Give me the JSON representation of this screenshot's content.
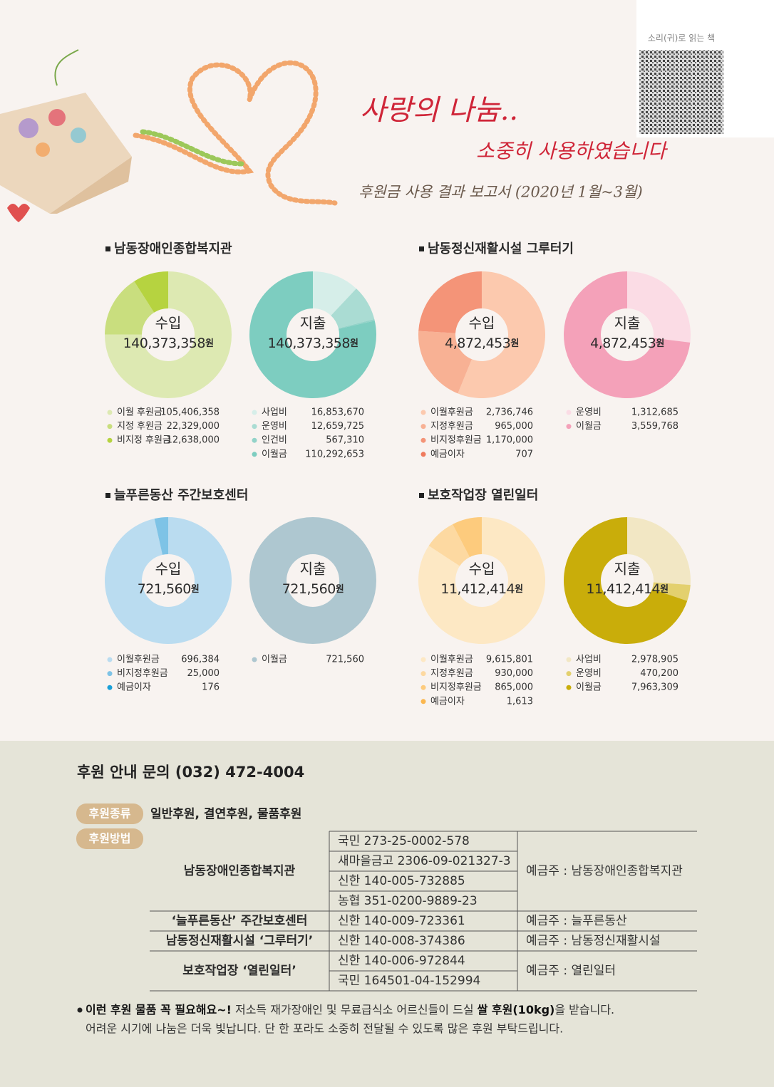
{
  "header": {
    "title": "사랑의 나눔..",
    "subtitle": "소중히 사용하였습니다",
    "report": "후원금 사용 결과 보고서 (2020년 1월~3월)",
    "audio_label": "소리(귀)로 읽는 책"
  },
  "sections": [
    {
      "title": "남동장애인종합복지관"
    },
    {
      "title": "남동정신재활시설 그루터기"
    },
    {
      "title": "늘푸른동산 주간보호센터"
    },
    {
      "title": "보호작업장 열린일터"
    }
  ],
  "chart_data": [
    {
      "type": "pie",
      "title": "수입",
      "total": "140,373,358",
      "unit": "원",
      "categories": [
        "이월 후원금",
        "지정 후원금",
        "비지정 후원금"
      ],
      "values": [
        105406358,
        22329000,
        12638000
      ],
      "value_labels": [
        "105,406,358",
        "22,329,000",
        "12,638,000"
      ],
      "colors": [
        "#dde9b2",
        "#c9de7e",
        "#b6d340"
      ]
    },
    {
      "type": "pie",
      "title": "지출",
      "total": "140,373,358",
      "unit": "원",
      "categories": [
        "사업비",
        "운영비",
        "인건비",
        "이월금"
      ],
      "values": [
        16853670,
        12659725,
        567310,
        110292653
      ],
      "value_labels": [
        "16,853,670",
        "12,659,725",
        "567,310",
        "110,292,653"
      ],
      "colors": [
        "#d6eee9",
        "#aadcd3",
        "#93d3c9",
        "#7dcdc0"
      ]
    },
    {
      "type": "pie",
      "title": "수입",
      "total": "4,872,453",
      "unit": "원",
      "categories": [
        "이월후원금",
        "지정후원금",
        "비지정후원금",
        "예금이자"
      ],
      "values": [
        2736746,
        965000,
        1170000,
        707
      ],
      "value_labels": [
        "2,736,746",
        "965,000",
        "1,170,000",
        "707"
      ],
      "colors": [
        "#fcc9ae",
        "#f8b194",
        "#f49478",
        "#ef7a5d"
      ]
    },
    {
      "type": "pie",
      "title": "지출",
      "total": "4,872,453",
      "unit": "원",
      "categories": [
        "운영비",
        "이월금"
      ],
      "values": [
        1312685,
        3559768
      ],
      "value_labels": [
        "1,312,685",
        "3,559,768"
      ],
      "colors": [
        "#fbdce5",
        "#f4a1b9"
      ]
    },
    {
      "type": "pie",
      "title": "수입",
      "total": "721,560",
      "unit": "원",
      "categories": [
        "이월후원금",
        "비지정후원금",
        "예금이자"
      ],
      "values": [
        696384,
        25000,
        176
      ],
      "value_labels": [
        "696,384",
        "25,000",
        "176"
      ],
      "colors": [
        "#badcf0",
        "#7ec3e6",
        "#1aa0d8"
      ]
    },
    {
      "type": "pie",
      "title": "지출",
      "total": "721,560",
      "unit": "원",
      "categories": [
        "이월금"
      ],
      "values": [
        721560
      ],
      "value_labels": [
        "721,560"
      ],
      "colors": [
        "#aec7d0"
      ]
    },
    {
      "type": "pie",
      "title": "수입",
      "total": "11,412,414",
      "unit": "원",
      "categories": [
        "이월후원금",
        "지정후원금",
        "비지정후원금",
        "예금이자"
      ],
      "values": [
        9615801,
        930000,
        865000,
        1613
      ],
      "value_labels": [
        "9,615,801",
        "930,000",
        "865,000",
        "1,613"
      ],
      "colors": [
        "#fde8c4",
        "#fdd9a1",
        "#fdcb7d",
        "#fbb74f"
      ]
    },
    {
      "type": "pie",
      "title": "지출",
      "total": "11,412,414",
      "unit": "원",
      "categories": [
        "사업비",
        "운영비",
        "이월금"
      ],
      "values": [
        2978905,
        470200,
        7963309
      ],
      "value_labels": [
        "2,978,905",
        "470,200",
        "7,963,309"
      ],
      "colors": [
        "#f2e7c4",
        "#e3d06e",
        "#c9ad0a"
      ]
    }
  ],
  "footer": {
    "contact": "후원 안내 문의 (032) 472-4004",
    "kinds_badge": "후원종류",
    "kinds": "일반후원, 결연후원, 물품후원",
    "method_badge": "후원방법",
    "groups": [
      {
        "org": "남동장애인종합복지관",
        "accounts": [
          "국민 273-25-0002-578",
          "새마을금고  2306-09-021327-3",
          "신한 140-005-732885",
          "농협 351-0200-9889-23"
        ],
        "holder": "예금주 : 남동장애인종합복지관"
      },
      {
        "org": "‘늘푸른동산’ 주간보호센터",
        "accounts": [
          "신한 140-009-723361"
        ],
        "holder": "예금주 : 늘푸른동산"
      },
      {
        "org": "남동정신재활시설 ‘그루터기’",
        "accounts": [
          "신한 140-008-374386"
        ],
        "holder": "예금주 : 남동정신재활시설"
      },
      {
        "org": "보호작업장 ‘열린일터’",
        "accounts": [
          "신한 140-006-972844",
          "국민 164501-04-152994"
        ],
        "holder": "예금주 : 열린일터"
      }
    ],
    "note": {
      "line1": [
        {
          "text": "이런 후원 물품 꼭 필요해요~!",
          "bold": true
        },
        {
          "text": " 저소득 재가장애인 및 무료급식소 어르신들이 드실 ",
          "bold": false
        },
        {
          "text": "쌀 후원(10kg)",
          "bold": true
        },
        {
          "text": "을 받습니다.",
          "bold": false
        }
      ],
      "line2": "어려운 시기에 나눔은 더욱 빛납니다. 단 한 포라도 소중히 전달될 수 있도록 많은 후원 부탁드립니다."
    }
  }
}
